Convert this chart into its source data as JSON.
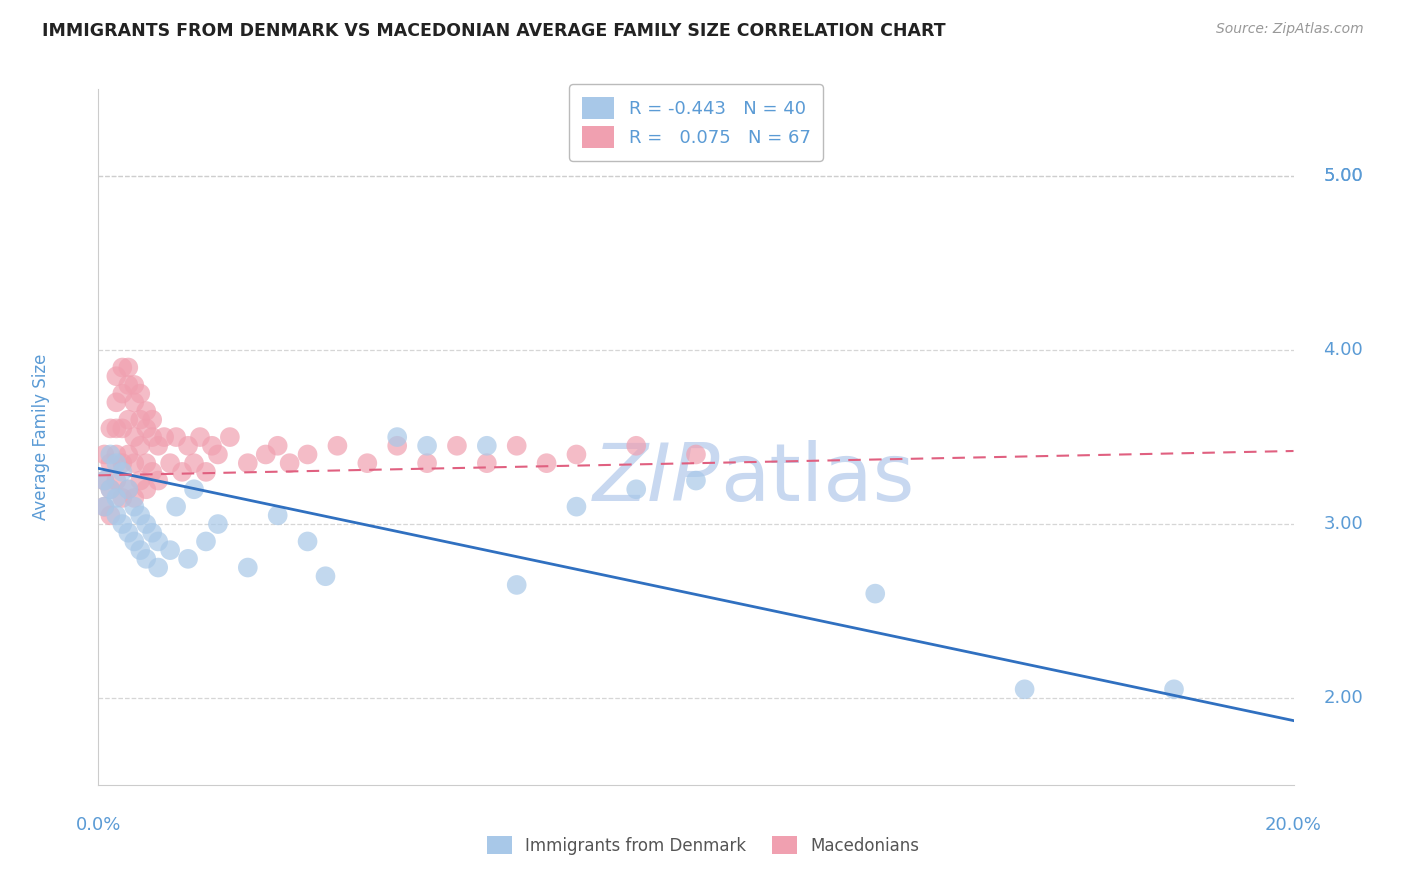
{
  "title": "IMMIGRANTS FROM DENMARK VS MACEDONIAN AVERAGE FAMILY SIZE CORRELATION CHART",
  "source": "Source: ZipAtlas.com",
  "ylabel": "Average Family Size",
  "ytick_vals": [
    2.0,
    3.0,
    4.0,
    5.0
  ],
  "ytick_top": 5.0,
  "xlim": [
    0.0,
    0.2
  ],
  "ylim": [
    1.5,
    5.5
  ],
  "legend_labels": [
    "Immigrants from Denmark",
    "Macedonians"
  ],
  "denmark_R": -0.443,
  "denmark_N": 40,
  "macedonian_R": 0.075,
  "macedonian_N": 67,
  "blue_color": "#A8C8E8",
  "pink_color": "#F0A0B0",
  "blue_line_color": "#3070C0",
  "pink_line_color": "#E06080",
  "background_color": "#FFFFFF",
  "title_color": "#222222",
  "source_color": "#999999",
  "axis_label_color": "#5B9BD5",
  "watermark_color": "#C8D8F0",
  "grid_color": "#CCCCCC",
  "denmark_points_x": [
    0.001,
    0.001,
    0.002,
    0.002,
    0.003,
    0.003,
    0.003,
    0.004,
    0.004,
    0.005,
    0.005,
    0.006,
    0.006,
    0.007,
    0.007,
    0.008,
    0.008,
    0.009,
    0.01,
    0.01,
    0.012,
    0.013,
    0.015,
    0.016,
    0.018,
    0.02,
    0.025,
    0.03,
    0.035,
    0.038,
    0.05,
    0.055,
    0.065,
    0.07,
    0.08,
    0.09,
    0.1,
    0.13,
    0.155,
    0.18
  ],
  "denmark_points_y": [
    3.25,
    3.1,
    3.4,
    3.2,
    3.35,
    3.15,
    3.05,
    3.3,
    3.0,
    3.2,
    2.95,
    3.1,
    2.9,
    3.05,
    2.85,
    3.0,
    2.8,
    2.95,
    2.9,
    2.75,
    2.85,
    3.1,
    2.8,
    3.2,
    2.9,
    3.0,
    2.75,
    3.05,
    2.9,
    2.7,
    3.5,
    3.45,
    3.45,
    2.65,
    3.1,
    3.2,
    3.25,
    2.6,
    2.05,
    2.05
  ],
  "macedonian_points_x": [
    0.001,
    0.001,
    0.001,
    0.002,
    0.002,
    0.002,
    0.002,
    0.003,
    0.003,
    0.003,
    0.003,
    0.004,
    0.004,
    0.004,
    0.004,
    0.005,
    0.005,
    0.005,
    0.005,
    0.006,
    0.006,
    0.006,
    0.006,
    0.007,
    0.007,
    0.007,
    0.008,
    0.008,
    0.008,
    0.009,
    0.009,
    0.01,
    0.01,
    0.011,
    0.012,
    0.013,
    0.014,
    0.015,
    0.016,
    0.017,
    0.018,
    0.019,
    0.02,
    0.022,
    0.025,
    0.028,
    0.03,
    0.032,
    0.035,
    0.04,
    0.045,
    0.05,
    0.055,
    0.06,
    0.065,
    0.07,
    0.075,
    0.08,
    0.09,
    0.1,
    0.003,
    0.004,
    0.005,
    0.006,
    0.007,
    0.008,
    0.009
  ],
  "macedonian_points_y": [
    3.4,
    3.25,
    3.1,
    3.55,
    3.35,
    3.2,
    3.05,
    3.7,
    3.55,
    3.4,
    3.25,
    3.75,
    3.55,
    3.35,
    3.15,
    3.8,
    3.6,
    3.4,
    3.2,
    3.7,
    3.5,
    3.35,
    3.15,
    3.6,
    3.45,
    3.25,
    3.55,
    3.35,
    3.2,
    3.5,
    3.3,
    3.45,
    3.25,
    3.5,
    3.35,
    3.5,
    3.3,
    3.45,
    3.35,
    3.5,
    3.3,
    3.45,
    3.4,
    3.5,
    3.35,
    3.4,
    3.45,
    3.35,
    3.4,
    3.45,
    3.35,
    3.45,
    3.35,
    3.45,
    3.35,
    3.45,
    3.35,
    3.4,
    3.45,
    3.4,
    3.85,
    3.9,
    3.9,
    3.8,
    3.75,
    3.65,
    3.6
  ]
}
